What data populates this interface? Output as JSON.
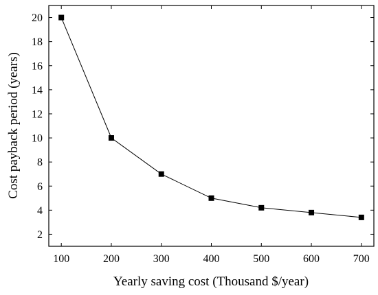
{
  "chart_data": {
    "type": "line",
    "xlabel": "Yearly saving cost (Thousand $/year)",
    "ylabel": "Cost payback period (years)",
    "xlim": [
      75,
      725
    ],
    "ylim": [
      1,
      21
    ],
    "x_ticks": [
      100,
      200,
      300,
      400,
      500,
      600,
      700
    ],
    "y_ticks": [
      2,
      4,
      6,
      8,
      10,
      12,
      14,
      16,
      18,
      20
    ],
    "x_tick_labels": [
      "100",
      "200",
      "300",
      "400",
      "500",
      "600",
      "700"
    ],
    "y_tick_labels": [
      "2",
      "4",
      "6",
      "8",
      "10",
      "12",
      "14",
      "16",
      "18",
      "20"
    ],
    "grid": false,
    "series": [
      {
        "x": [
          100,
          200,
          300,
          400,
          500,
          600,
          700
        ],
        "values": [
          20,
          10,
          7,
          5,
          4.2,
          3.8,
          3.4
        ],
        "marker": "square",
        "color": "#000000"
      }
    ]
  }
}
